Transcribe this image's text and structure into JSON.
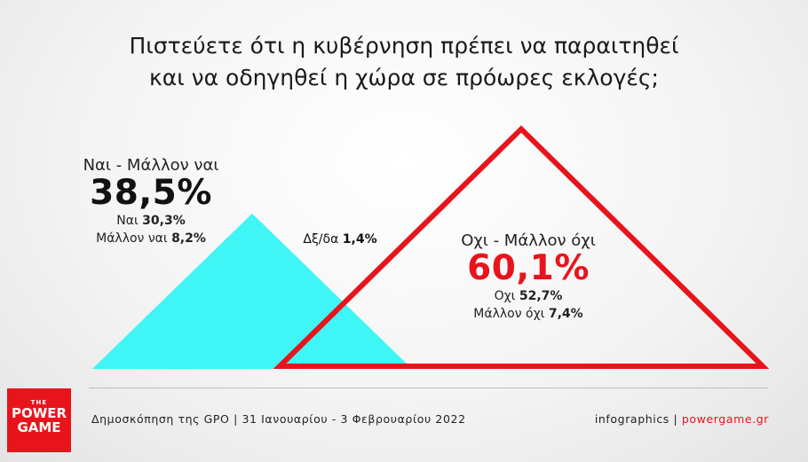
{
  "title": {
    "line1": "Πιστεύετε ότι η κυβέρνηση πρέπει να παραιτηθεί",
    "line2": "και να οδηγηθεί η χώρα σε πρόωρες εκλογές;"
  },
  "yes": {
    "label": "Ναι - Μάλλον ναι",
    "total": "38,5%",
    "sub1_label": "Ναι",
    "sub1_value": "30,3%",
    "sub2_label": "Μάλλον ναι",
    "sub2_value": "8,2%"
  },
  "no": {
    "label": "Οχι - Μάλλον όχι",
    "total": "60,1%",
    "sub1_label": "Οχι",
    "sub1_value": "52,7%",
    "sub2_label": "Μάλλον όχι",
    "sub2_value": "7,4%"
  },
  "dont_know": {
    "label": "Δξ/δα",
    "value": "1,4%"
  },
  "footer": {
    "source": "Δημοσκόπηση της GPO | 31 Ιανουαρίου - 3 Φεβρουαρίου 2022",
    "credit_prefix": "infographics |",
    "credit_site": "powergame.gr"
  },
  "logo": {
    "the": "THE",
    "word1": "POWER",
    "word2": "GAME"
  },
  "chart_data": {
    "type": "area",
    "categories": [
      "Ναι - Μάλλον ναι",
      "Οχι - Μάλλον όχι",
      "Δξ/δα"
    ],
    "values": [
      38.5,
      60.1,
      1.4
    ],
    "breakdown": {
      "Ναι - Μάλλον ναι": {
        "Ναι": 30.3,
        "Μάλλον ναι": 8.2
      },
      "Οχι - Μάλλον όχι": {
        "Οχι": 52.7,
        "Μάλλον όχι": 7.4
      }
    },
    "colors": {
      "yes": "#3ff5f5",
      "no": "#e8141c"
    },
    "shape": "triangle"
  }
}
